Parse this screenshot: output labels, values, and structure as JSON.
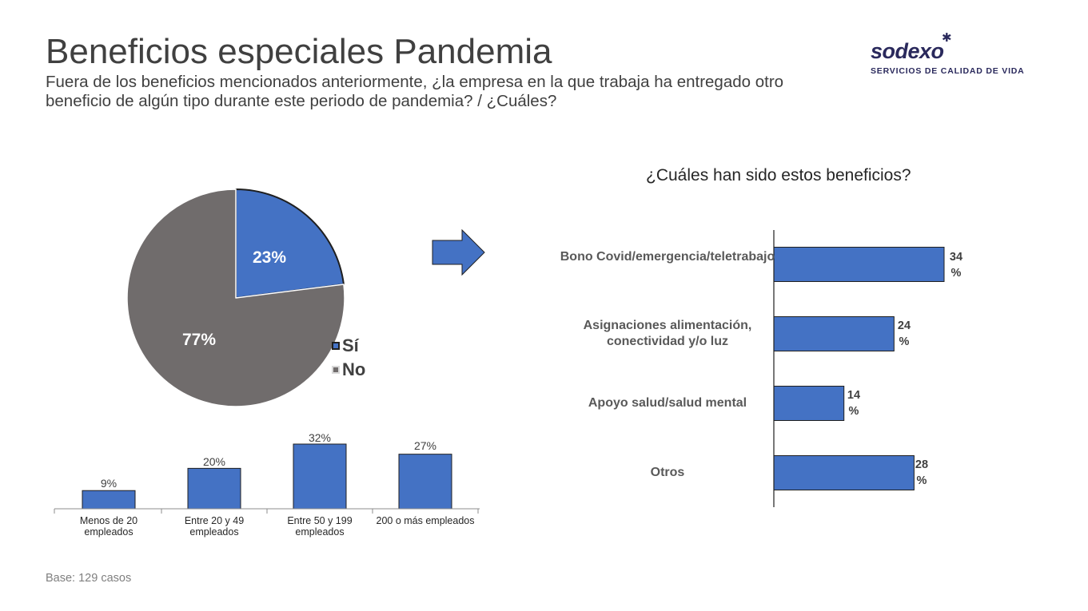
{
  "header": {
    "title": "Beneficios especiales Pandemia",
    "subtitle": "Fuera de los beneficios mencionados anteriormente, ¿la empresa en la que trabaja ha entregado otro beneficio de algún tipo durante este periodo de pandemia? / ¿Cuáles?"
  },
  "logo": {
    "brand": "sodexo",
    "tagline": "SERVICIOS DE CALIDAD DE VIDA"
  },
  "colors": {
    "blue": "#4472c4",
    "gray": "#706c6c",
    "text": "#404040"
  },
  "chart_data": [
    {
      "type": "pie",
      "slices": [
        {
          "name": "Sí",
          "value": 23,
          "label": "23%",
          "color": "#4472c4"
        },
        {
          "name": "No",
          "value": 77,
          "label": "77%",
          "color": "#706c6c"
        }
      ],
      "legend": [
        "Sí",
        "No"
      ],
      "legend_position": "right"
    },
    {
      "type": "bar",
      "categories": [
        "Menos de 20 empleados",
        "Entre 20 y 49 empleados",
        "Entre 50 y 199 empleados",
        "200 o más empleados"
      ],
      "values": [
        9,
        20,
        32,
        27
      ],
      "labels": [
        "9%",
        "20%",
        "32%",
        "27%"
      ],
      "ylim": [
        0,
        32
      ]
    },
    {
      "type": "bar",
      "orientation": "horizontal",
      "title": "¿Cuáles han sido estos beneficios?",
      "categories": [
        "Bono Covid/emergencia/teletrabajo",
        "Asignaciones alimentación, conectividad y/o luz",
        "Apoyo salud/salud mental",
        "Otros"
      ],
      "values": [
        34,
        24,
        14,
        28
      ],
      "labels": [
        "34 %",
        "24 %",
        "14 %",
        "28 %"
      ],
      "xlim": [
        0,
        34
      ]
    }
  ],
  "footer": {
    "base": "Base: 129 casos"
  }
}
